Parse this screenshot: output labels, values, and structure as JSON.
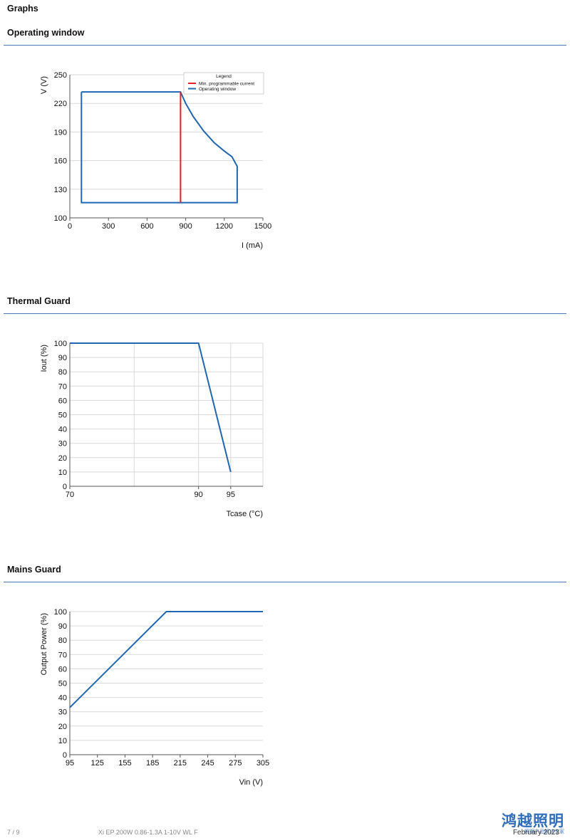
{
  "page": {
    "heading": "Graphs",
    "footer_page": "7 / 9",
    "footer_product": "Xi EP 200W 0.86-1.3A 1-10V WL F",
    "footer_date": "February 2023",
    "watermark_main": "鸿越照明",
    "watermark_sub": "照明产品解决专家"
  },
  "colors": {
    "rule": "#4a77b9",
    "series": "#1f66b3",
    "min_current": "#e0202a",
    "grid": "#d9d9d9"
  },
  "chart_data": [
    {
      "title": "Operating window",
      "type": "line",
      "xlabel": "I (mA)",
      "ylabel": "V (V)",
      "xlim": [
        0,
        1500
      ],
      "ylim": [
        100,
        250
      ],
      "xticks": [
        "0",
        "300",
        "600",
        "900",
        "1200",
        "1500"
      ],
      "yticks": [
        "100",
        "130",
        "160",
        "190",
        "220",
        "250"
      ],
      "grid": "horizontal",
      "legend": {
        "title": "Legend",
        "placement": "top-right"
      },
      "series": [
        {
          "name": "Min. programmable current",
          "color": "#e0202a",
          "x": [
            860,
            860
          ],
          "y": [
            116,
            232
          ]
        },
        {
          "name": "Operating window",
          "color": "#1f66b3",
          "x": [
            90,
            860,
            900,
            960,
            1040,
            1120,
            1200,
            1260,
            1300,
            1300,
            90,
            90
          ],
          "y": [
            232,
            232,
            220,
            206,
            191,
            179,
            170,
            164,
            154,
            116,
            116,
            232
          ]
        }
      ]
    },
    {
      "title": "Thermal Guard",
      "type": "line",
      "xlabel": "Tcase (°C)",
      "ylabel": "Iout (%)",
      "xlim": [
        70,
        100
      ],
      "ylim": [
        0,
        100
      ],
      "xticks": [
        "70",
        "90",
        "95"
      ],
      "xtick_values": [
        70,
        90,
        95
      ],
      "yticks": [
        "0",
        "10",
        "20",
        "30",
        "40",
        "50",
        "60",
        "70",
        "80",
        "90",
        "100"
      ],
      "grid": "both",
      "series": [
        {
          "color": "#1f66b3",
          "x": [
            70,
            90,
            95
          ],
          "y": [
            100,
            100,
            10
          ]
        }
      ]
    },
    {
      "title": "Mains Guard",
      "type": "line",
      "xlabel": "Vin (V)",
      "ylabel": "Output Power (%)",
      "xlim": [
        95,
        305
      ],
      "ylim": [
        0,
        100
      ],
      "xticks": [
        "95",
        "125",
        "155",
        "185",
        "215",
        "245",
        "275",
        "305"
      ],
      "yticks": [
        "0",
        "10",
        "20",
        "30",
        "40",
        "50",
        "60",
        "70",
        "80",
        "90",
        "100"
      ],
      "grid": "horizontal",
      "series": [
        {
          "color": "#1f66b3",
          "x": [
            95,
            200,
            305
          ],
          "y": [
            33,
            100,
            100
          ]
        }
      ]
    }
  ]
}
